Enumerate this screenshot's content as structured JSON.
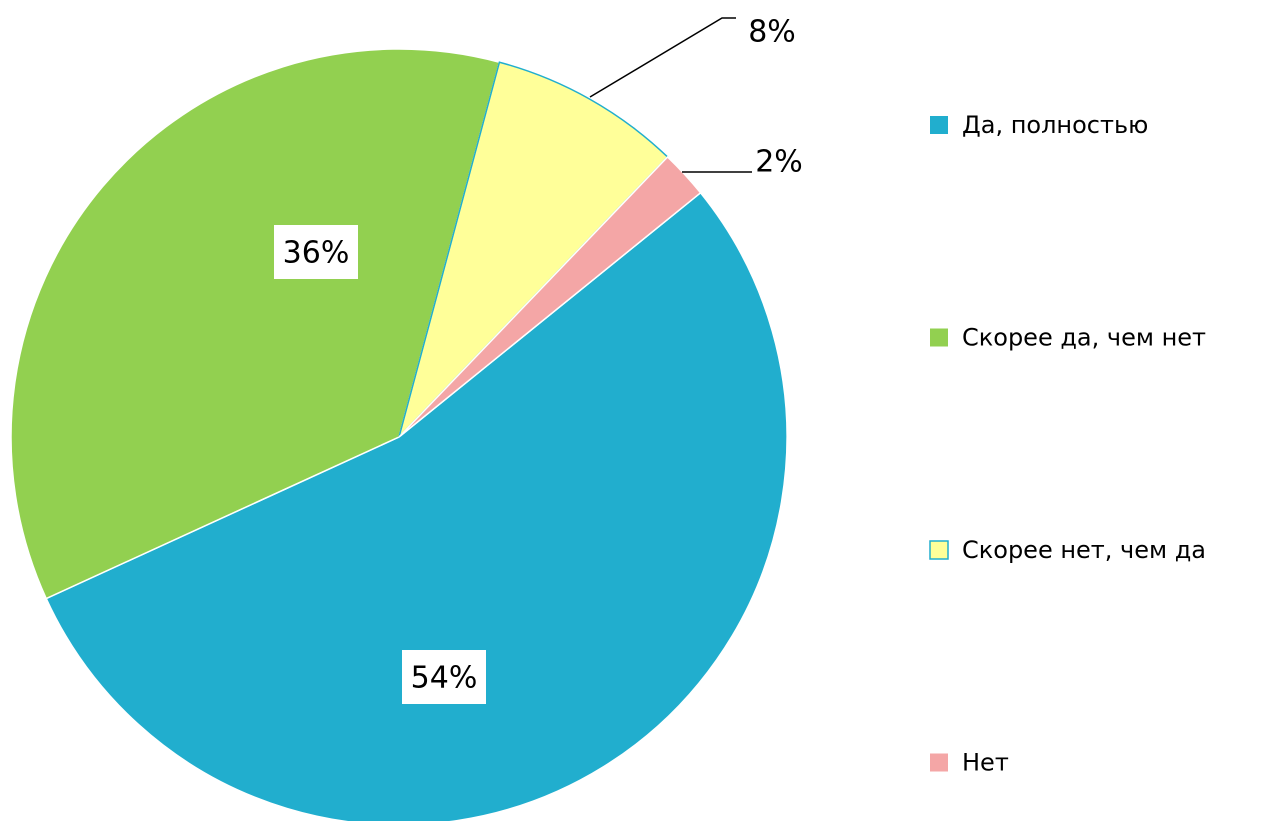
{
  "chart_data": {
    "type": "pie",
    "categories": [
      "Да, полностью",
      "Скорее да, чем нет",
      "Скорее нет, чем да",
      "Нет"
    ],
    "values": [
      54,
      36,
      8,
      2
    ],
    "value_labels": [
      "54%",
      "36%",
      "8%",
      "2%"
    ],
    "colors": [
      "#21aece",
      "#92d050",
      "#ffff99",
      "#f4a6a6"
    ],
    "legend": "right"
  }
}
